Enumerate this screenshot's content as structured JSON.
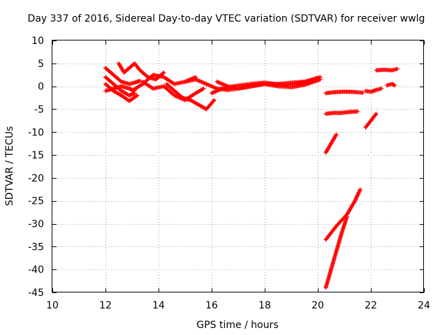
{
  "chart_data": {
    "type": "scatter",
    "title": "Day 337 of 2016, Sidereal Day-to-day VTEC variation (SDTVAR) for receiver wwlg",
    "xlabel": "GPS time / hours",
    "ylabel": "SDTVAR / TECUs",
    "xlim": [
      10,
      24
    ],
    "ylim": [
      -45,
      10
    ],
    "xticks": [
      10,
      12,
      14,
      16,
      18,
      20,
      22,
      24
    ],
    "yticks": [
      10,
      5,
      0,
      -5,
      -10,
      -15,
      -20,
      -25,
      -30,
      -35,
      -40,
      -45
    ],
    "grid": true,
    "legend": "none",
    "marker": "plus",
    "color": "#ff0000",
    "series": [
      {
        "x": [
          12.0,
          12.3,
          12.6,
          12.9,
          13.1,
          13.3
        ],
        "y": [
          4.0,
          2.5,
          1.0,
          0.5,
          0.8,
          1.2
        ]
      },
      {
        "x": [
          12.0,
          12.3,
          12.6,
          12.9,
          13.1
        ],
        "y": [
          2.0,
          0.5,
          -1.0,
          -2.0,
          -1.5
        ]
      },
      {
        "x": [
          12.0,
          12.3,
          12.6,
          12.9,
          13.1
        ],
        "y": [
          -1.0,
          -0.5,
          0.0,
          -0.5,
          -1.0
        ]
      },
      {
        "x": [
          12.0,
          12.3,
          12.6,
          12.9,
          13.2
        ],
        "y": [
          0.5,
          -1.0,
          -2.0,
          -3.2,
          -2.0
        ]
      },
      {
        "x": [
          12.5,
          12.7,
          12.9,
          13.1,
          13.3,
          13.6,
          13.9,
          14.2
        ],
        "y": [
          5.0,
          3.0,
          4.0,
          5.0,
          3.5,
          2.0,
          1.5,
          3.0
        ]
      },
      {
        "x": [
          13.0,
          13.4,
          13.8,
          14.2,
          14.6,
          15.0,
          15.4
        ],
        "y": [
          -1.0,
          0.5,
          2.5,
          2.0,
          0.5,
          1.0,
          2.0
        ]
      },
      {
        "x": [
          13.4,
          13.8,
          14.2,
          14.6,
          15.0,
          15.4,
          15.7
        ],
        "y": [
          1.0,
          -0.5,
          0.0,
          -2.0,
          -3.0,
          -1.5,
          -0.5
        ]
      },
      {
        "x": [
          14.3,
          14.6,
          14.9,
          15.2,
          15.5,
          15.8,
          16.1
        ],
        "y": [
          0.5,
          -1.0,
          -2.5,
          -3.0,
          -4.0,
          -5.0,
          -3.0
        ]
      },
      {
        "x": [
          15.0,
          15.4,
          15.8,
          16.2,
          16.6,
          17.0,
          17.5,
          18.0,
          18.5,
          19.0,
          19.5,
          20.1
        ],
        "y": [
          1.0,
          1.5,
          0.5,
          -0.5,
          -0.8,
          -0.5,
          0.0,
          0.5,
          0.0,
          -0.2,
          0.3,
          1.5
        ]
      },
      {
        "x": [
          16.2,
          16.6,
          17.0,
          17.5,
          18.0,
          18.5,
          19.0,
          19.5,
          20.1
        ],
        "y": [
          1.0,
          0.0,
          -0.5,
          0.0,
          0.5,
          0.5,
          0.8,
          1.0,
          2.0
        ]
      },
      {
        "x": [
          16.0,
          16.4,
          16.8,
          17.2,
          17.6,
          18.0,
          18.4,
          18.8,
          19.2,
          19.6,
          20.0
        ],
        "y": [
          -1.5,
          -0.5,
          0.0,
          0.3,
          0.6,
          0.8,
          0.5,
          0.2,
          0.6,
          1.0,
          1.8
        ]
      },
      {
        "x": [
          20.3,
          20.6,
          20.9,
          21.2,
          21.5,
          21.7
        ],
        "y": [
          -1.5,
          -1.3,
          -1.2,
          -1.2,
          -1.3,
          -1.4
        ]
      },
      {
        "x": [
          21.8,
          22.0,
          22.2,
          22.4
        ],
        "y": [
          -1.0,
          -1.2,
          -0.8,
          -0.5
        ]
      },
      {
        "x": [
          20.3,
          20.6,
          20.9,
          21.2,
          21.5
        ],
        "y": [
          -6.0,
          -5.8,
          -5.8,
          -5.6,
          -5.5
        ]
      },
      {
        "x": [
          20.3,
          20.5,
          20.7
        ],
        "y": [
          -14.5,
          -12.5,
          -10.5
        ]
      },
      {
        "x": [
          21.8,
          22.0,
          22.2
        ],
        "y": [
          -9.0,
          -7.5,
          -6.0
        ]
      },
      {
        "x": [
          22.2,
          22.5,
          22.8,
          23.0
        ],
        "y": [
          3.5,
          3.6,
          3.5,
          3.8
        ]
      },
      {
        "x": [
          22.6,
          22.8,
          22.9
        ],
        "y": [
          0.2,
          0.5,
          0.2
        ]
      },
      {
        "x": [
          20.3,
          20.7,
          21.1,
          21.4,
          21.6
        ],
        "y": [
          -33.5,
          -30.5,
          -28.0,
          -25.0,
          -22.5
        ]
      },
      {
        "x": [
          20.3,
          20.5,
          20.7,
          20.9,
          21.1
        ],
        "y": [
          -44.0,
          -40.0,
          -36.0,
          -32.0,
          -28.5
        ]
      }
    ]
  }
}
